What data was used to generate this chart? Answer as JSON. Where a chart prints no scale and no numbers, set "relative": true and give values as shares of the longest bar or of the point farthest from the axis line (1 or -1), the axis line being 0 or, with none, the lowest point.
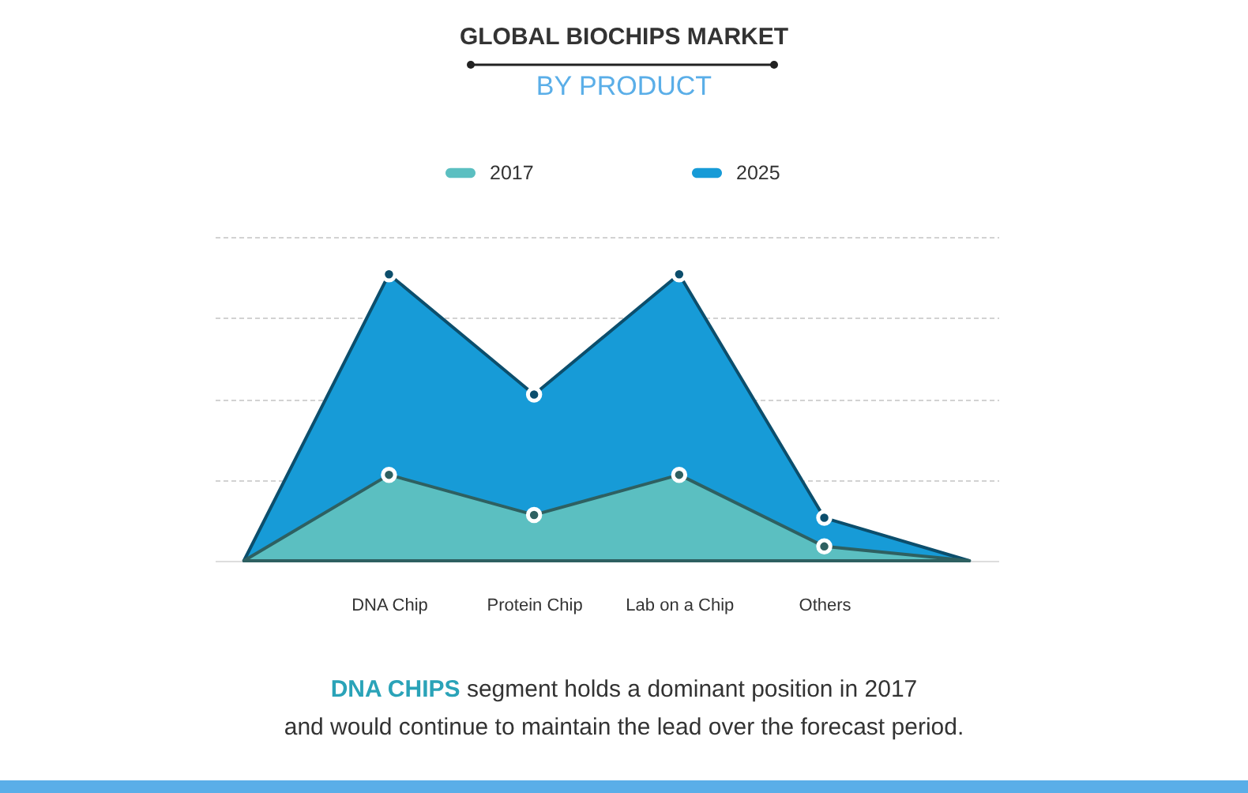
{
  "chart_data": {
    "type": "area",
    "title": "GLOBAL BIOCHIPS MARKET",
    "subtitle": "BY PRODUCT",
    "categories": [
      null,
      "DNA Chip",
      "Protein Chip",
      "Lab on a Chip",
      "Others",
      null
    ],
    "series": [
      {
        "name": "2017",
        "color": "#5bbfc1",
        "values": [
          0,
          0.3,
          0.16,
          0.3,
          0.05,
          0
        ]
      },
      {
        "name": "2025",
        "color": "#179bd7",
        "values": [
          0,
          1,
          0.58,
          1,
          0.15,
          0
        ]
      }
    ],
    "relative": true,
    "grid": "y",
    "legend": "top",
    "marker": "circle",
    "annotations": [
      "DNA CHIPS",
      "segment holds a dominant position in 2017",
      "and would continue to maintain the lead over the forecast period."
    ]
  }
}
